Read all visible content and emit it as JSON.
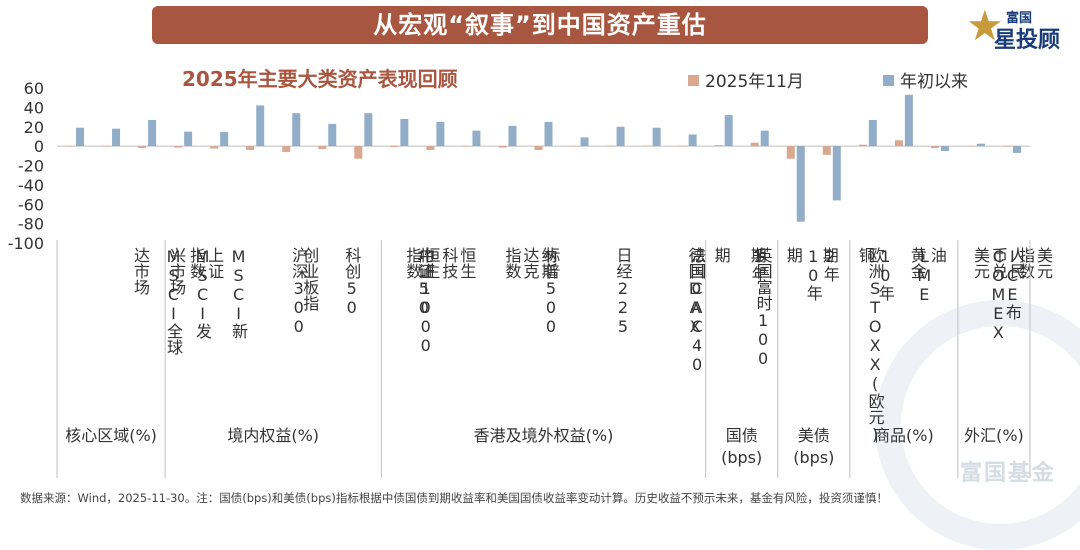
{
  "header": {
    "title": "从宏观“叙事”到中国资产重估"
  },
  "logo": {
    "line1": "富国",
    "line2": "星投顾",
    "icon": "star-icon"
  },
  "watermark": {
    "text": "富国基金"
  },
  "colors": {
    "banner": "#a8563f",
    "series_nov": "#d9a88f",
    "series_ytd": "#91adc8"
  },
  "chart_data": {
    "type": "bar",
    "title": "2025年主要大类资产表现回顾",
    "ylim": [
      -100,
      60
    ],
    "yticks": [
      60,
      40,
      20,
      0,
      -20,
      -40,
      -60,
      -80,
      -100
    ],
    "categories": [
      "MSCI全球",
      "MSCI发达市场",
      "MSCI新兴市场",
      "上证指数",
      "沪深300",
      "创业板指",
      "科创50",
      "中证1000",
      "北证50",
      "恒生指数",
      "恒生科技",
      "标普500",
      "纳斯达克指数",
      "日经225",
      "法国CAC40",
      "德国DAX",
      "英国富时100",
      "欧洲STOXX(欧元)",
      "1年期",
      "10年期",
      "2年期",
      "10年期",
      "LME铜",
      "COMEX黄金",
      "ICE布油",
      "人民币兑美元",
      "美元指数"
    ],
    "category_lines": [
      [
        "MSCI全球"
      ],
      [
        "MSCI发",
        "达市场"
      ],
      [
        "MSCI新",
        "兴市场"
      ],
      [
        "上证",
        "指数"
      ],
      [
        "沪深300"
      ],
      [
        "创业板指"
      ],
      [
        "科创50"
      ],
      [
        "中证1000"
      ],
      [
        "北证50"
      ],
      [
        "恒生",
        "指数"
      ],
      [
        "恒生",
        "科技"
      ],
      [
        "标普500"
      ],
      [
        "纳斯",
        "达克",
        "指数"
      ],
      [
        "日经225"
      ],
      [
        "法国CAC40"
      ],
      [
        "德国DAX"
      ],
      [
        "英国富时100"
      ],
      [
        "欧洲STOXX(欧元)"
      ],
      [
        "1年",
        "期"
      ],
      [
        "10年",
        "期"
      ],
      [
        "2年",
        "期"
      ],
      [
        "10年",
        "期"
      ],
      [
        "LME",
        "铜"
      ],
      [
        "COMEX",
        "黄金"
      ],
      [
        "ICE布",
        "油"
      ],
      [
        "人民",
        "币兑",
        "美元"
      ],
      [
        "美元",
        "指数"
      ]
    ],
    "series": [
      {
        "name": "2025年11月",
        "values": [
          0.2,
          0.1,
          -2,
          -1.5,
          -2.5,
          -4,
          -6,
          -3,
          -13,
          -1,
          -4,
          0.2,
          -1.5,
          -4,
          0.2,
          0.5,
          0.5,
          0.5,
          1,
          3.5,
          -13,
          -9,
          1.5,
          6,
          -2,
          0.3,
          -0.2
        ]
      },
      {
        "name": "年初以来",
        "values": [
          19,
          18,
          27,
          15,
          14.5,
          42,
          34,
          23,
          34,
          28,
          25,
          16,
          21,
          25,
          9,
          20,
          19,
          12,
          32,
          16,
          -78,
          -56,
          27,
          53,
          -5,
          2.5,
          -7
        ]
      }
    ],
    "groups": [
      {
        "label": "核心区域(%)",
        "count": 3
      },
      {
        "label": "境内权益(%)",
        "count": 6
      },
      {
        "label": "香港及境外权益(%)",
        "count": 9
      },
      {
        "label": "国债\n(bps)",
        "count": 2
      },
      {
        "label": "美债\n(bps)",
        "count": 2
      },
      {
        "label": "商品(%)",
        "count": 3
      },
      {
        "label": "外汇(%)",
        "count": 2
      }
    ]
  },
  "footer": {
    "note": "数据来源：Wind，2025-11-30。注：国债(bps)和美债(bps)指标根据中债国债到期收益率和美国国债收益率变动计算。历史收益不预示未来，基金有风险，投资须谨慎！"
  }
}
